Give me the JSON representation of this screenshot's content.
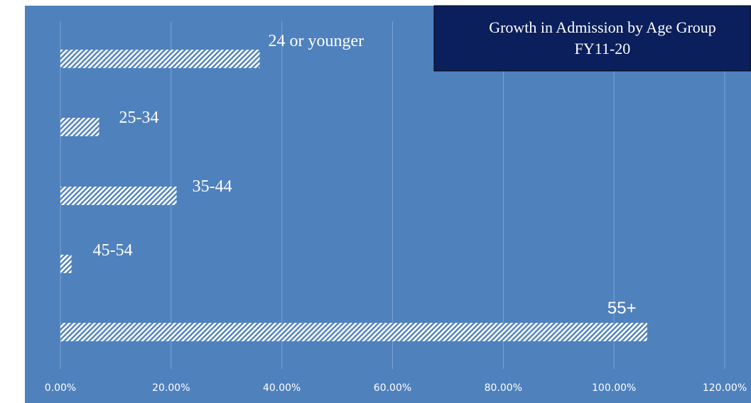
{
  "chart_data": {
    "type": "bar",
    "orientation": "horizontal",
    "title_lines": [
      "Growth in Admission by Age Group",
      "FY11-20"
    ],
    "categories": [
      "24 or younger",
      "25-34",
      "35-44",
      "45-54",
      "55+"
    ],
    "values": [
      0.36,
      0.07,
      0.21,
      0.02,
      1.06
    ],
    "xlim": [
      0,
      1.2
    ],
    "x_ticks": [
      0,
      0.2,
      0.4,
      0.6,
      0.8,
      1.0,
      1.2
    ],
    "x_tick_labels": [
      "0.00%",
      "20.00%",
      "40.00%",
      "60.00%",
      "80.00%",
      "100.00%",
      "120.00%"
    ],
    "xlabel": "",
    "ylabel": "",
    "grid": "vertical",
    "legend": "none",
    "colors": {
      "plot_background": "#4f81bd",
      "bar_hatch": "#ffffff",
      "title_box": "#0b1f5c",
      "gridline": "#7fa3d4",
      "text": "#ffffff"
    },
    "bar_pattern": "diagonal-hatch"
  }
}
